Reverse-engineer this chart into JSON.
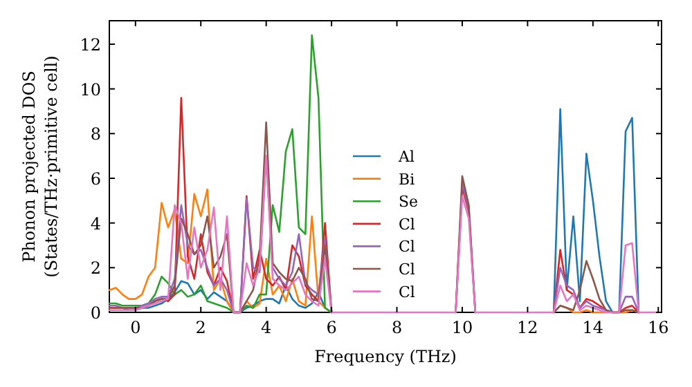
{
  "chart_data": {
    "type": "line",
    "xlabel": "Frequency (THz)",
    "ylabel": "Phonon projected DOS\n(States/THz·primitive cell)",
    "x": [
      -0.8,
      -0.6,
      -0.4,
      -0.2,
      0,
      0.2,
      0.4,
      0.6,
      0.8,
      1,
      1.2,
      1.4,
      1.6,
      1.8,
      2,
      2.2,
      2.4,
      2.6,
      2.8,
      3,
      3.2,
      3.4,
      3.6,
      3.8,
      4,
      4.2,
      4.4,
      4.6,
      4.8,
      5,
      5.2,
      5.4,
      5.6,
      5.8,
      6,
      6.2,
      6.4,
      6.6,
      6.8,
      7,
      7.2,
      7.4,
      7.6,
      7.8,
      8,
      8.2,
      8.4,
      8.6,
      8.8,
      9,
      9.2,
      9.4,
      9.6,
      9.8,
      10,
      10.2,
      10.4,
      10.6,
      10.8,
      11,
      11.2,
      11.4,
      11.6,
      11.8,
      12,
      12.2,
      12.4,
      12.6,
      12.8,
      13,
      13.2,
      13.4,
      13.6,
      13.8,
      14,
      14.2,
      14.4,
      14.6,
      14.8,
      15,
      15.2,
      15.4,
      15.6,
      15.8,
      16
    ],
    "series": [
      {
        "name": "Al",
        "color": "#1f77b4",
        "values": [
          null,
          null,
          null,
          null,
          null,
          0.2,
          0.2,
          0.3,
          0.4,
          0.6,
          0.9,
          1.4,
          1.3,
          0.8,
          1.0,
          0.6,
          0.9,
          0.7,
          0.5,
          0,
          0,
          0.2,
          0.3,
          0.5,
          0.6,
          0.6,
          0.4,
          1.2,
          0.6,
          0.3,
          0.2,
          0.4,
          0.9,
          0.2,
          0,
          null,
          null,
          null,
          null,
          null,
          null,
          null,
          null,
          null,
          null,
          null,
          null,
          null,
          null,
          null,
          null,
          null,
          null,
          null,
          null,
          null,
          null,
          null,
          null,
          null,
          null,
          null,
          null,
          null,
          null,
          null,
          null,
          null,
          0,
          9.1,
          1.0,
          4.3,
          0.5,
          7.1,
          5.0,
          2.5,
          0.5,
          0,
          0,
          8.1,
          8.7,
          0,
          null,
          null,
          null
        ]
      },
      {
        "name": "Bi",
        "color": "#ff7f0e",
        "values": [
          1.0,
          1.1,
          0.8,
          0.6,
          0.6,
          0.8,
          1.6,
          2.0,
          4.9,
          3.8,
          4.6,
          2.4,
          2.2,
          5.3,
          4.3,
          5.5,
          1.0,
          1.5,
          0.5,
          0,
          0,
          0.5,
          0.2,
          0.4,
          2.4,
          0.8,
          1.2,
          0.5,
          1.5,
          0.5,
          0.3,
          4.3,
          0.5,
          0.2,
          0,
          null,
          null,
          null,
          null,
          null,
          null,
          null,
          null,
          null,
          null,
          null,
          null,
          null,
          null,
          null,
          null,
          null,
          null,
          null,
          null,
          null,
          null,
          null,
          null,
          null,
          null,
          null,
          null,
          null,
          null,
          null,
          null,
          null,
          0,
          0.3,
          0.2,
          0,
          0,
          0.1,
          0,
          0,
          0,
          0,
          0,
          0,
          0.1,
          0,
          null,
          null,
          null
        ]
      },
      {
        "name": "Se",
        "color": "#2ca02c",
        "values": [
          0.4,
          0.4,
          0.3,
          0.3,
          0.3,
          0.3,
          0.4,
          0.8,
          1.6,
          1.3,
          0.8,
          1.0,
          0.7,
          0.8,
          1.2,
          0.5,
          0.4,
          0.3,
          0.2,
          0,
          0,
          0.3,
          0.2,
          0.8,
          0.8,
          4.8,
          3.6,
          7.2,
          8.2,
          3.8,
          3.5,
          12.4,
          9.6,
          0.2,
          0,
          null,
          null,
          null,
          null,
          null,
          null,
          null,
          null,
          null,
          null,
          null,
          null,
          null,
          null,
          null,
          null,
          null,
          null,
          null,
          null,
          null,
          null,
          null,
          null,
          null,
          null,
          null,
          null,
          null,
          null,
          null,
          null,
          null,
          null,
          null,
          null,
          null,
          null,
          null,
          null,
          null,
          null,
          null,
          null,
          null,
          null,
          null,
          null,
          null,
          null
        ]
      },
      {
        "name": "Cl",
        "color": "#d62728",
        "values": [
          0.2,
          0.2,
          0.2,
          0.1,
          0.1,
          0.2,
          0.3,
          0.5,
          0.6,
          0.5,
          0.8,
          9.6,
          2.5,
          1.5,
          3.5,
          1.8,
          1.2,
          2.0,
          1.4,
          0,
          0,
          5.2,
          1.5,
          2.8,
          1.5,
          1.2,
          1.6,
          1.0,
          3.0,
          2.5,
          1.2,
          0.8,
          0.5,
          4.0,
          0,
          null,
          null,
          null,
          null,
          null,
          null,
          null,
          null,
          null,
          null,
          null,
          null,
          null,
          null,
          null,
          null,
          null,
          null,
          0,
          5.6,
          4.5,
          0,
          null,
          null,
          null,
          null,
          null,
          null,
          null,
          null,
          null,
          null,
          null,
          0,
          2.8,
          1.0,
          0.8,
          0.2,
          0.6,
          0.5,
          0.3,
          0.1,
          0,
          0,
          0.2,
          0.3,
          0,
          null,
          null,
          null
        ]
      },
      {
        "name": "Cl",
        "color": "#9467bd",
        "values": [
          0.3,
          0.3,
          0.2,
          0.2,
          0.2,
          0.3,
          0.4,
          0.6,
          0.7,
          0.7,
          1.5,
          4.8,
          3.0,
          2.6,
          2.8,
          2.0,
          1.2,
          1.5,
          1.0,
          0,
          0,
          5.1,
          2.0,
          1.8,
          7.0,
          2.0,
          1.5,
          1.2,
          1.8,
          3.5,
          1.3,
          1.0,
          0.8,
          3.3,
          0,
          null,
          null,
          null,
          null,
          null,
          null,
          null,
          null,
          null,
          null,
          null,
          null,
          null,
          null,
          null,
          null,
          null,
          null,
          0,
          5.8,
          4.6,
          0,
          null,
          null,
          null,
          null,
          null,
          null,
          null,
          null,
          null,
          null,
          null,
          0,
          2.0,
          1.2,
          1.0,
          0.2,
          0.5,
          0.3,
          0.2,
          0.1,
          0,
          0,
          0.7,
          0.7,
          0,
          null,
          null,
          null
        ]
      },
      {
        "name": "Cl",
        "color": "#8c564b",
        "values": [
          0.2,
          0.2,
          0.2,
          0.2,
          0.2,
          0.2,
          0.3,
          0.5,
          0.6,
          0.6,
          1.2,
          4.2,
          3.5,
          2.6,
          3.0,
          4.3,
          2.0,
          2.5,
          3.5,
          0,
          0,
          0.5,
          1.0,
          2.5,
          8.5,
          2.2,
          1.8,
          1.5,
          1.4,
          2.0,
          1.5,
          0.6,
          0.5,
          3.0,
          0,
          null,
          null,
          null,
          null,
          null,
          null,
          null,
          null,
          null,
          null,
          null,
          null,
          null,
          null,
          null,
          null,
          null,
          null,
          0,
          6.1,
          4.8,
          0,
          null,
          null,
          null,
          null,
          null,
          null,
          null,
          null,
          null,
          null,
          null,
          0,
          0.3,
          0.2,
          0.1,
          1.0,
          2.3,
          1.5,
          0.6,
          0.1,
          0,
          0,
          0.1,
          0.1,
          0,
          null,
          null,
          null
        ]
      },
      {
        "name": "Cl",
        "color": "#e377c2",
        "values": [
          0.1,
          0.1,
          0.1,
          0.1,
          0.1,
          0.2,
          0.3,
          0.4,
          0.5,
          0.6,
          4.8,
          4.0,
          1.5,
          3.8,
          2.0,
          2.8,
          4.7,
          1.0,
          4.3,
          0,
          0,
          2.2,
          1.2,
          2.0,
          7.0,
          1.5,
          1.2,
          1.0,
          1.3,
          1.6,
          0.8,
          0.5,
          0.3,
          2.4,
          0,
          0,
          0,
          0,
          0,
          0,
          0,
          0,
          0,
          0,
          0,
          0,
          0,
          0,
          0,
          0,
          0,
          0,
          0,
          0,
          5.2,
          4.2,
          0,
          0,
          0,
          0,
          0,
          0,
          0,
          0,
          0,
          0,
          0,
          0,
          0,
          1.2,
          0.5,
          0.8,
          0.1,
          0.3,
          0.2,
          0.1,
          0,
          0,
          0,
          3.0,
          3.1,
          0,
          0,
          0,
          0
        ]
      }
    ],
    "xlim": [
      -0.8,
      16.1
    ],
    "ylim": [
      0,
      13.05
    ],
    "xticks": [
      0,
      2,
      4,
      6,
      8,
      10,
      12,
      14,
      16
    ],
    "yticks": [
      0,
      2,
      4,
      6,
      8,
      10,
      12
    ],
    "legend": "center",
    "grid": false
  }
}
